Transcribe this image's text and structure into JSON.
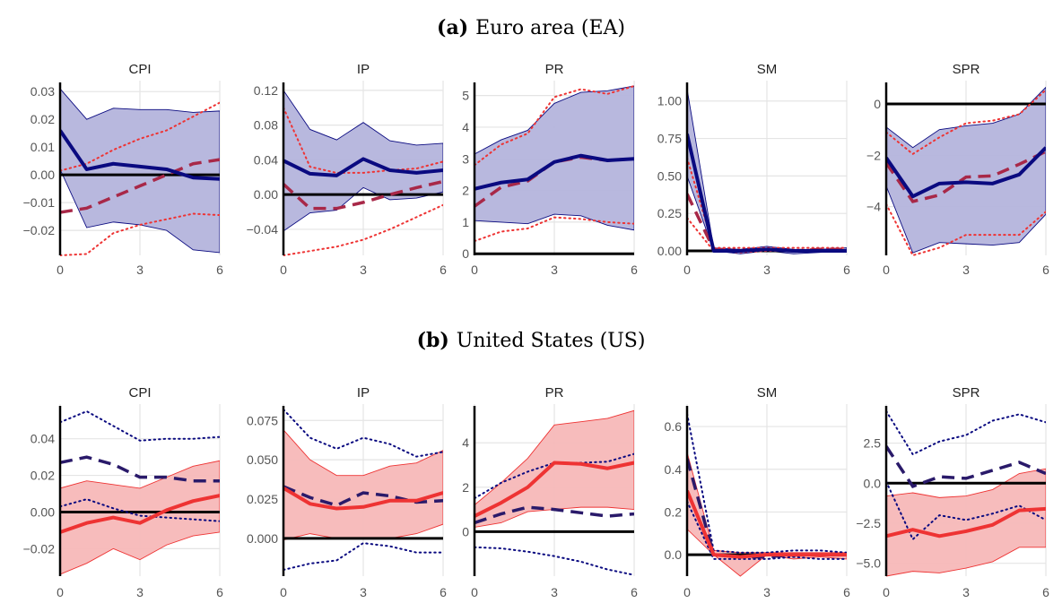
{
  "panels": [
    {
      "label": "(a)",
      "title": "Euro area (EA)",
      "main_color": "#0a0a80",
      "band_color": "#b4b4dc",
      "alt_color": "#a82848",
      "alt_dot_color": "#ee3333"
    },
    {
      "label": "(b)",
      "title": "United States (US)",
      "main_color": "#ee3333",
      "band_color": "#f7b8b8",
      "alt_color": "#2a1a6a",
      "alt_dot_color": "#0a0a80"
    }
  ],
  "chart_data": [
    {
      "type": "line",
      "panel": 0,
      "title": "CPI",
      "x": [
        0,
        1,
        2,
        3,
        4,
        5,
        6
      ],
      "xticks": [
        0,
        3,
        6
      ],
      "ylim": [
        -0.029,
        0.032
      ],
      "yticks": [
        -0.02,
        -0.01,
        0.0,
        0.01,
        0.02,
        0.03
      ],
      "ytick_labels": [
        "−0.02",
        "−0.01",
        "0.00",
        "0.01",
        "0.02",
        "0.03"
      ],
      "main": [
        0.016,
        0.002,
        0.004,
        0.003,
        0.002,
        -0.001,
        -0.0015
      ],
      "lower": [
        0.002,
        -0.019,
        -0.017,
        -0.018,
        -0.02,
        -0.027,
        -0.028
      ],
      "upper": [
        0.031,
        0.02,
        0.024,
        0.0235,
        0.0235,
        0.0225,
        0.023
      ],
      "alt": [
        -0.0135,
        -0.012,
        -0.008,
        -0.004,
        0.0,
        0.004,
        0.0055
      ],
      "alt_lower": [
        -0.029,
        -0.0285,
        -0.021,
        -0.018,
        -0.016,
        -0.014,
        -0.0145
      ],
      "alt_upper": [
        0.0015,
        0.004,
        0.009,
        0.013,
        0.016,
        0.021,
        0.026
      ],
      "zero": 0
    },
    {
      "type": "line",
      "panel": 0,
      "title": "IP",
      "x": [
        0,
        1,
        2,
        3,
        4,
        5,
        6
      ],
      "xticks": [
        0,
        3,
        6
      ],
      "ylim": [
        -0.07,
        0.125
      ],
      "yticks": [
        -0.04,
        0.0,
        0.04,
        0.08,
        0.12
      ],
      "ytick_labels": [
        "−0.04",
        "0.00",
        "0.04",
        "0.08",
        "0.12"
      ],
      "main": [
        0.039,
        0.024,
        0.022,
        0.041,
        0.028,
        0.025,
        0.028
      ],
      "lower": [
        -0.042,
        -0.021,
        -0.018,
        0.008,
        -0.006,
        -0.004,
        0.003
      ],
      "upper": [
        0.12,
        0.075,
        0.063,
        0.083,
        0.062,
        0.057,
        0.059
      ],
      "alt": [
        0.012,
        -0.016,
        -0.016,
        -0.009,
        0.0,
        0.008,
        0.015
      ],
      "alt_lower": [
        -0.07,
        -0.065,
        -0.06,
        -0.052,
        -0.04,
        -0.026,
        -0.012
      ],
      "alt_upper": [
        0.1,
        0.032,
        0.025,
        0.025,
        0.028,
        0.03,
        0.038
      ],
      "zero": 0
    },
    {
      "type": "line",
      "panel": 0,
      "title": "PR",
      "x": [
        0,
        1,
        2,
        3,
        4,
        5,
        6
      ],
      "xticks": [
        0,
        3,
        6
      ],
      "ylim": [
        -0.05,
        5.3
      ],
      "yticks": [
        0,
        1,
        2,
        3,
        4,
        5
      ],
      "ytick_labels": [
        "0",
        "1",
        "2",
        "3",
        "4",
        "5"
      ],
      "main": [
        2.05,
        2.25,
        2.35,
        2.9,
        3.1,
        2.95,
        3.0
      ],
      "lower": [
        1.05,
        1.0,
        0.95,
        1.25,
        1.2,
        0.9,
        0.75
      ],
      "upper": [
        3.15,
        3.6,
        3.9,
        4.75,
        5.1,
        5.15,
        5.3
      ],
      "alt": [
        1.5,
        2.1,
        2.3,
        2.9,
        3.05,
        2.95,
        3.0
      ],
      "alt_lower": [
        0.4,
        0.7,
        0.8,
        1.15,
        1.1,
        1.0,
        0.95
      ],
      "alt_upper": [
        2.8,
        3.45,
        3.8,
        4.95,
        5.2,
        5.05,
        5.3
      ],
      "zero": 0
    },
    {
      "type": "line",
      "panel": 0,
      "title": "SM",
      "x": [
        0,
        1,
        2,
        3,
        4,
        5,
        6
      ],
      "xticks": [
        0,
        3,
        6
      ],
      "ylim": [
        -0.03,
        1.1
      ],
      "yticks": [
        0,
        0.25,
        0.5,
        0.75,
        1.0
      ],
      "ytick_labels": [
        "0.00",
        "0.25",
        "0.50",
        "0.75",
        "1.00"
      ],
      "main": [
        0.78,
        0.0,
        0.0,
        0.01,
        0.0,
        0.0,
        0.0
      ],
      "lower": [
        0.5,
        0.0,
        -0.02,
        0.0,
        -0.02,
        -0.01,
        0.0
      ],
      "upper": [
        1.08,
        0.02,
        0.01,
        0.03,
        0.01,
        0.01,
        0.02
      ],
      "alt": [
        0.38,
        0.01,
        0.0,
        0.01,
        0.0,
        0.01,
        0.01
      ],
      "alt_lower": [
        0.22,
        0.0,
        -0.01,
        0.0,
        0.0,
        0.0,
        0.0
      ],
      "alt_upper": [
        0.62,
        0.02,
        0.02,
        0.02,
        0.02,
        0.02,
        0.02
      ],
      "zero": 0
    },
    {
      "type": "line",
      "panel": 0,
      "title": "SPR",
      "x": [
        0,
        1,
        2,
        3,
        4,
        5,
        6
      ],
      "xticks": [
        0,
        3,
        6
      ],
      "ylim": [
        -5.9,
        0.7
      ],
      "yticks": [
        -4,
        -2,
        0
      ],
      "ytick_labels": [
        "−4",
        "−2",
        "0"
      ],
      "main": [
        -2.1,
        -3.6,
        -3.1,
        -3.05,
        -3.1,
        -2.75,
        -1.7
      ],
      "lower": [
        -3.2,
        -5.8,
        -5.4,
        -5.45,
        -5.5,
        -5.4,
        -4.3
      ],
      "upper": [
        -0.9,
        -1.7,
        -1.0,
        -0.85,
        -0.75,
        -0.4,
        0.65
      ],
      "alt": [
        -2.3,
        -3.8,
        -3.55,
        -2.85,
        -2.8,
        -2.35,
        -1.85
      ],
      "alt_lower": [
        -3.9,
        -5.9,
        -5.6,
        -5.1,
        -5.1,
        -5.1,
        -4.2
      ],
      "alt_upper": [
        -1.1,
        -1.95,
        -1.3,
        -0.75,
        -0.65,
        -0.4,
        0.55
      ],
      "zero": 0
    },
    {
      "type": "line",
      "panel": 1,
      "title": "CPI",
      "x": [
        0,
        1,
        2,
        3,
        4,
        5,
        6
      ],
      "xticks": [
        0,
        3,
        6
      ],
      "ylim": [
        -0.035,
        0.056
      ],
      "yticks": [
        -0.02,
        0.0,
        0.02,
        0.04
      ],
      "ytick_labels": [
        "−0.02",
        "0.00",
        "0.02",
        "0.04"
      ],
      "main": [
        -0.011,
        -0.006,
        -0.003,
        -0.006,
        0.001,
        0.006,
        0.009
      ],
      "lower": [
        -0.034,
        -0.028,
        -0.02,
        -0.026,
        -0.018,
        -0.013,
        -0.011
      ],
      "upper": [
        0.013,
        0.017,
        0.015,
        0.013,
        0.019,
        0.025,
        0.028
      ],
      "alt": [
        0.027,
        0.03,
        0.026,
        0.019,
        0.019,
        0.017,
        0.017
      ],
      "alt_lower": [
        0.003,
        0.007,
        0.002,
        -0.002,
        -0.003,
        -0.004,
        -0.005
      ],
      "alt_upper": [
        0.049,
        0.055,
        0.047,
        0.039,
        0.04,
        0.04,
        0.041
      ],
      "zero": 0
    },
    {
      "type": "line",
      "panel": 1,
      "title": "IP",
      "x": [
        0,
        1,
        2,
        3,
        4,
        5,
        6
      ],
      "xticks": [
        0,
        3,
        6
      ],
      "ylim": [
        -0.024,
        0.082
      ],
      "yticks": [
        0.0,
        0.025,
        0.05,
        0.075
      ],
      "ytick_labels": [
        "0.000",
        "0.025",
        "0.050",
        "0.075"
      ],
      "main": [
        0.032,
        0.022,
        0.019,
        0.02,
        0.024,
        0.024,
        0.029
      ],
      "lower": [
        -0.001,
        0.003,
        0.0,
        0.0,
        0.0,
        0.003,
        0.009
      ],
      "upper": [
        0.069,
        0.05,
        0.04,
        0.04,
        0.046,
        0.048,
        0.056
      ],
      "alt": [
        0.033,
        0.026,
        0.021,
        0.029,
        0.027,
        0.023,
        0.024
      ],
      "alt_lower": [
        -0.02,
        -0.016,
        -0.014,
        -0.003,
        -0.005,
        -0.009,
        -0.009
      ],
      "alt_upper": [
        0.082,
        0.064,
        0.057,
        0.064,
        0.06,
        0.052,
        0.055
      ],
      "zero": 0
    },
    {
      "type": "line",
      "panel": 1,
      "title": "PR",
      "x": [
        0,
        1,
        2,
        3,
        4,
        5,
        6
      ],
      "xticks": [
        0,
        3,
        6
      ],
      "ylim": [
        -2.0,
        5.5
      ],
      "yticks": [
        0,
        2,
        4
      ],
      "ytick_labels": [
        "0",
        "2",
        "4"
      ],
      "main": [
        0.7,
        1.3,
        2.0,
        3.1,
        3.05,
        2.85,
        3.1
      ],
      "lower": [
        0.2,
        0.4,
        0.9,
        1.0,
        1.1,
        1.1,
        1.0
      ],
      "upper": [
        1.2,
        2.2,
        3.3,
        4.8,
        4.95,
        5.1,
        5.45
      ],
      "alt": [
        0.4,
        0.8,
        1.1,
        1.0,
        0.85,
        0.7,
        0.8
      ],
      "alt_lower": [
        -0.7,
        -0.75,
        -0.9,
        -1.1,
        -1.35,
        -1.7,
        -1.95
      ],
      "alt_upper": [
        1.5,
        2.2,
        2.7,
        3.1,
        3.1,
        3.15,
        3.5
      ],
      "zero": 0
    },
    {
      "type": "line",
      "panel": 1,
      "title": "SM",
      "x": [
        0,
        1,
        2,
        3,
        4,
        5,
        6
      ],
      "xticks": [
        0,
        3,
        6
      ],
      "ylim": [
        -0.1,
        0.68
      ],
      "yticks": [
        0.0,
        0.2,
        0.4,
        0.6
      ],
      "ytick_labels": [
        "0.0",
        "0.2",
        "0.4",
        "0.6"
      ],
      "main": [
        0.3,
        0.0,
        -0.01,
        0.0,
        0.0,
        0.0,
        0.0
      ],
      "lower": [
        0.12,
        0.0,
        -0.1,
        0.0,
        -0.02,
        -0.01,
        -0.02
      ],
      "upper": [
        0.48,
        0.02,
        0.01,
        0.01,
        0.01,
        0.01,
        0.01
      ],
      "alt": [
        0.45,
        0.0,
        -0.01,
        -0.01,
        0.0,
        0.0,
        0.0
      ],
      "alt_lower": [
        0.25,
        -0.02,
        -0.02,
        -0.02,
        -0.01,
        -0.02,
        -0.02
      ],
      "alt_upper": [
        0.66,
        0.02,
        0.01,
        0.01,
        0.02,
        0.02,
        0.01
      ],
      "zero": 0
    },
    {
      "type": "line",
      "panel": 1,
      "title": "SPR",
      "x": [
        0,
        1,
        2,
        3,
        4,
        5,
        6
      ],
      "xticks": [
        0,
        3,
        6
      ],
      "ylim": [
        -5.8,
        4.6
      ],
      "yticks": [
        -5,
        -2.5,
        0,
        2.5
      ],
      "ytick_labels": [
        "−5.0",
        "−2.5",
        "0.0",
        "2.5"
      ],
      "main": [
        -3.3,
        -2.9,
        -3.3,
        -3.0,
        -2.6,
        -1.7,
        -1.6
      ],
      "lower": [
        -5.8,
        -5.5,
        -5.6,
        -5.3,
        -4.9,
        -4.0,
        -4.0
      ],
      "upper": [
        -0.8,
        -0.6,
        -0.9,
        -0.8,
        -0.4,
        0.6,
        0.9
      ],
      "alt": [
        2.3,
        -0.2,
        0.4,
        0.3,
        0.8,
        1.3,
        0.6
      ],
      "alt_lower": [
        0.1,
        -3.5,
        -2.0,
        -2.3,
        -1.9,
        -1.4,
        -2.3
      ],
      "alt_upper": [
        4.5,
        1.8,
        2.6,
        3.0,
        3.9,
        4.3,
        3.8
      ],
      "zero": 0
    }
  ]
}
